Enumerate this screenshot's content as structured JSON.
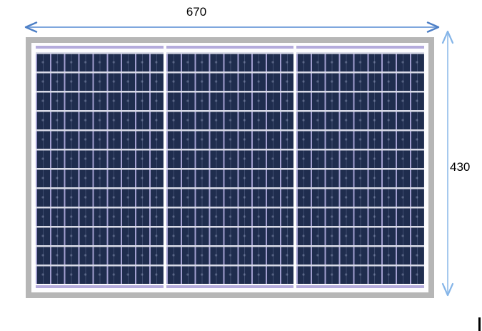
{
  "dimensions": {
    "width_label": "670",
    "height_label": "430"
  },
  "panel": {
    "description": "solar-panel-front-view",
    "section_count": 3,
    "rows": 12,
    "columns_per_section": 9,
    "colors": {
      "frame": "#b6b6b6",
      "cell": "#1f2d4e",
      "vertical_grid_line": "#a29fd0",
      "horizontal_grid_line": "#d9dbe8",
      "busbar_strip": "#b4abdc",
      "section_divider": "#ffffff"
    }
  },
  "arrows": {
    "horizontal_line_color": "#7fa7dd",
    "horizontal_head_color": "#4d7fc6",
    "vertical_line_color": "#a6c9ee",
    "vertical_head_color": "#85b5e8"
  }
}
